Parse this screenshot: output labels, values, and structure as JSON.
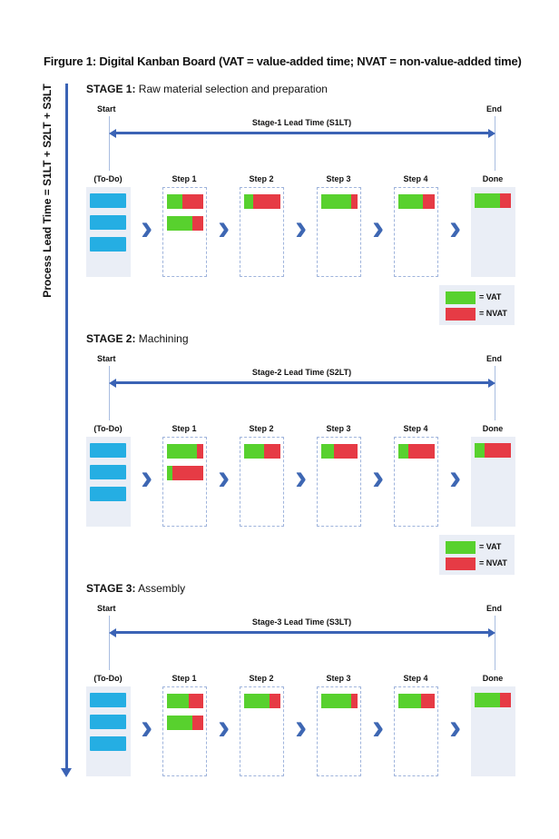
{
  "title": "Firgure 1:  Digital Kanban Board (VAT = value-added time; NVAT = non-value-added time)",
  "axis_label": "Process Lead Time = S1LT + S2LT + S3LT",
  "colors": {
    "vat": "#58d12e",
    "nvat": "#e63b45",
    "todo_card": "#25aee3",
    "arrow": "#3b63b5",
    "column_bg": "#eaeef6"
  },
  "legend": {
    "vat": "= VAT",
    "nvat": "= NVAT"
  },
  "columns": [
    "(To-Do)",
    "Step 1",
    "Step 2",
    "Step 3",
    "Step 4",
    "Done"
  ],
  "start_label": "Start",
  "end_label": "End",
  "stages": [
    {
      "heading": "STAGE 1:",
      "name": "Raw material selection and preparation",
      "lead_time": "Stage-1 Lead Time (S1LT)",
      "todo_cards": 3,
      "show_legend": true,
      "bars": [
        [
          {
            "vat_fraction": 0.42
          },
          {
            "vat_fraction": 0.7
          }
        ],
        [
          {
            "vat_fraction": 0.25
          }
        ],
        [
          {
            "vat_fraction": 0.83
          }
        ],
        [
          {
            "vat_fraction": 0.68
          }
        ],
        [
          {
            "vat_fraction": 0.69
          }
        ]
      ]
    },
    {
      "heading": "STAGE 2:",
      "name": "Machining",
      "lead_time": "Stage-2 Lead Time (S2LT)",
      "todo_cards": 3,
      "show_legend": true,
      "bars": [
        [
          {
            "vat_fraction": 0.83
          },
          {
            "vat_fraction": 0.15
          }
        ],
        [
          {
            "vat_fraction": 0.55
          }
        ],
        [
          {
            "vat_fraction": 0.34
          }
        ],
        [
          {
            "vat_fraction": 0.27
          }
        ],
        [
          {
            "vat_fraction": 0.27
          }
        ]
      ]
    },
    {
      "heading": "STAGE 3:",
      "name": "Assembly",
      "lead_time": "Stage-3 Lead Time (S3LT)",
      "todo_cards": 3,
      "show_legend": false,
      "bars": [
        [
          {
            "vat_fraction": 0.61
          },
          {
            "vat_fraction": 0.7
          }
        ],
        [
          {
            "vat_fraction": 0.71
          }
        ],
        [
          {
            "vat_fraction": 0.83
          }
        ],
        [
          {
            "vat_fraction": 0.62
          }
        ],
        [
          {
            "vat_fraction": 0.69
          }
        ]
      ]
    }
  ]
}
